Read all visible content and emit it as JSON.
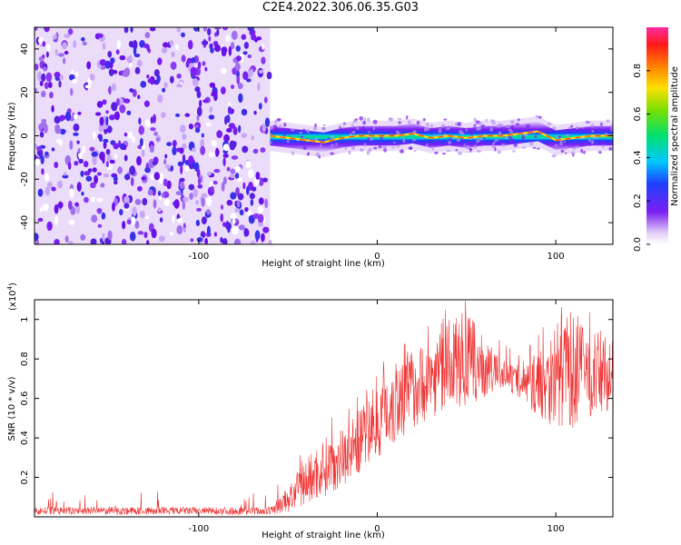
{
  "title": "C2E4.2022.306.06.35.G03",
  "colors": {
    "trace": "#ee3333",
    "band_low": "#7a1ff2",
    "band_high": "#ee2222"
  },
  "chart_data": [
    {
      "type": "heatmap",
      "xlabel": "Height of straight line (km)",
      "ylabel": "Frequency (Hz)",
      "xlim": [
        -192,
        132
      ],
      "ylim": [
        -50,
        50
      ],
      "xticks": [
        -100,
        0,
        100
      ],
      "yticks": [
        -40,
        -20,
        0,
        20,
        40
      ],
      "noise_region_x": [
        -192,
        -60
      ],
      "signal_band_x": [
        -60,
        132
      ],
      "signal_center_freq": [
        [
          -60,
          0
        ],
        [
          -50,
          -1
        ],
        [
          -40,
          -2
        ],
        [
          -30,
          -3
        ],
        [
          -20,
          -1
        ],
        [
          -10,
          0
        ],
        [
          0,
          0
        ],
        [
          10,
          0
        ],
        [
          20,
          1
        ],
        [
          30,
          -1
        ],
        [
          40,
          0
        ],
        [
          50,
          -1
        ],
        [
          60,
          0
        ],
        [
          70,
          0
        ],
        [
          80,
          1
        ],
        [
          90,
          2
        ],
        [
          100,
          -2
        ],
        [
          110,
          -1
        ],
        [
          120,
          0
        ],
        [
          132,
          0
        ]
      ],
      "colorbar": {
        "label": "Normalized spectral amplitude",
        "range": [
          0,
          1
        ],
        "ticks": [
          "0.0",
          "0.2",
          "0.4",
          "0.6",
          "0.8"
        ]
      }
    },
    {
      "type": "line",
      "xlabel": "Height of straight line (km)",
      "ylabel": "SNR (10 * v/v)",
      "scale_label": "(x10",
      "scale_exp": "4",
      "scale_close": ")",
      "xlim": [
        -192,
        132
      ],
      "ylim": [
        0,
        1.1
      ],
      "xticks": [
        -100,
        0,
        100
      ],
      "yticks": [
        0.2,
        0.4,
        0.6,
        0.8,
        1.0
      ],
      "series": [
        {
          "envelope_x": [
            -192,
            -60,
            -50,
            -40,
            -30,
            -20,
            -10,
            0,
            10,
            20,
            30,
            40,
            50,
            60,
            70,
            80,
            90,
            100,
            110,
            120,
            132
          ],
          "envelope_low": [
            0.01,
            0.01,
            0.02,
            0.05,
            0.1,
            0.15,
            0.22,
            0.3,
            0.35,
            0.45,
            0.5,
            0.55,
            0.55,
            0.6,
            0.65,
            0.6,
            0.5,
            0.45,
            0.45,
            0.5,
            0.55
          ],
          "envelope_high": [
            0.05,
            0.05,
            0.15,
            0.3,
            0.4,
            0.45,
            0.55,
            0.65,
            0.85,
            0.85,
            0.9,
            1.0,
            1.05,
            0.9,
            0.8,
            0.75,
            0.85,
            1.0,
            1.05,
            0.95,
            0.9
          ]
        }
      ]
    }
  ]
}
